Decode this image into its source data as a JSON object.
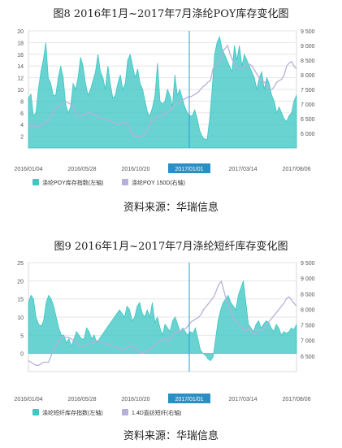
{
  "figures": [
    {
      "title": "图8   2016年1月~2017年7月涤纶POY库存变化图",
      "source": "资料来源：华瑞信息",
      "chart_data": {
        "type": "area",
        "x_tick_labels": [
          "2016/01/04",
          "2016/05/28",
          "2016/10/20",
          "2017/01/01",
          "2017/03/14",
          "2017/08/06"
        ],
        "highlight_label": "2017/01/01",
        "left_axis": {
          "ticks": [
            2,
            4,
            6,
            8,
            10,
            12,
            14,
            16,
            18,
            20
          ],
          "ylim": [
            0,
            20
          ]
        },
        "right_axis": {
          "ticks": [
            "6 000",
            "6 500",
            "7 000",
            "7 500",
            "8 000",
            "8 500",
            "9 000",
            "9 500"
          ],
          "ylim": [
            5500,
            9500
          ]
        },
        "series": [
          {
            "name": "涤纶POY库存指数(左轴)",
            "axis": "left",
            "color": "#3ec7c3",
            "values": [
              8.5,
              9.2,
              5.5,
              6,
              10,
              13,
              15,
              18,
              12,
              11,
              9,
              9,
              12,
              14,
              12,
              7.5,
              6,
              7,
              11,
              10,
              12,
              15.5,
              14,
              11,
              9,
              10,
              11.5,
              13,
              16,
              13,
              12,
              10,
              14,
              11,
              8.5,
              9,
              11,
              12.5,
              10,
              11,
              15,
              16,
              14,
              12,
              13.5,
              11,
              10,
              8,
              6,
              5.5,
              7,
              9,
              14.5,
              8,
              7.5,
              8,
              10,
              9,
              7,
              12.5,
              9,
              10,
              8.5,
              7,
              6,
              5.5,
              5.5,
              6.5,
              5,
              3,
              2,
              1.5,
              1.5,
              5,
              10,
              16,
              18,
              19,
              17,
              16,
              15,
              14,
              13,
              17.5,
              15,
              17.5,
              14,
              16,
              15,
              14,
              13,
              12,
              10,
              12,
              13,
              10,
              12,
              11,
              9,
              8,
              6,
              7,
              6,
              5,
              4.5,
              5.5,
              6,
              8,
              9
            ]
          },
          {
            "name": "涤纶POY 150D(右轴)",
            "axis": "right",
            "color": "#b7b0dc",
            "values": [
              6250,
              6250,
              6250,
              6250,
              6250,
              6280,
              6320,
              6350,
              6450,
              6600,
              6700,
              6850,
              6900,
              7000,
              7050,
              7050,
              7050,
              7000,
              6950,
              6700,
              6600,
              6600,
              6650,
              6650,
              6700,
              6700,
              6650,
              6650,
              6600,
              6500,
              6500,
              6500,
              6450,
              6450,
              6400,
              6350,
              6300,
              6300,
              6350,
              6400,
              6350,
              6200,
              6000,
              5900,
              5900,
              5900,
              5900,
              5950,
              6050,
              6250,
              6450,
              6450,
              6550,
              6600,
              6600,
              6650,
              6700,
              6750,
              6850,
              6950,
              7000,
              7050,
              7100,
              7150,
              7200,
              7250,
              7250,
              7300,
              7350,
              7400,
              7500,
              7600,
              7650,
              7750,
              7800,
              8200,
              8300,
              8400,
              8500,
              8800,
              8900,
              9000,
              8700,
              8500,
              8300,
              8250,
              8200,
              8250,
              8300,
              8400,
              8350,
              8300,
              8150,
              8000,
              7900,
              7800,
              7750,
              7600,
              7500,
              7500,
              7600,
              7750,
              7800,
              7850,
              8000,
              8300,
              8400,
              8450,
              8300,
              8200
            ]
          }
        ]
      }
    },
    {
      "title": "图9   2016年1月~2017年7月涤纶短纤库存变化图",
      "source": "资料来源：华瑞信息",
      "chart_data": {
        "type": "area",
        "x_tick_labels": [
          "2016/01/04",
          "2016/05/28",
          "2016/10/20",
          "2017/01/01",
          "2017/03/14",
          "2017/08/06"
        ],
        "highlight_label": "2017/01/01",
        "left_axis": {
          "ticks": [
            0,
            5,
            10,
            15,
            20,
            25
          ],
          "ylim": [
            -5,
            25
          ]
        },
        "right_axis": {
          "ticks": [
            "6 500",
            "7 000",
            "7 500",
            "8 000",
            "8 500",
            "9 000",
            "9 500"
          ],
          "ylim": [
            6000,
            9500
          ]
        },
        "series": [
          {
            "name": "涤纶短纤库存指数(左轴)",
            "axis": "left",
            "color": "#3ec7c3",
            "values": [
              14,
              16,
              15,
              10,
              8,
              7.5,
              9,
              14,
              16,
              15,
              13,
              10,
              7,
              5,
              5,
              3,
              4,
              2,
              4,
              6,
              5,
              4,
              4,
              7,
              6,
              4,
              5,
              3,
              4,
              5,
              6,
              7,
              8,
              9,
              10,
              11,
              12,
              11,
              10,
              13,
              12,
              9,
              10,
              13,
              14,
              11,
              10,
              12,
              10,
              14,
              8.5,
              10,
              7,
              5,
              8,
              7,
              6,
              9,
              10,
              8,
              6,
              7,
              6,
              5,
              6,
              5.5,
              7,
              4,
              1,
              0,
              -0.5,
              -1.5,
              -2,
              -1,
              4,
              9,
              12,
              14,
              15,
              16,
              14,
              13,
              12,
              16,
              18,
              20,
              14,
              8,
              7,
              6,
              8,
              9,
              7,
              8,
              9,
              8.5,
              7,
              6,
              8,
              7,
              5,
              6,
              5.5,
              6,
              7,
              6.5,
              8
            ]
          },
          {
            "name": "1.4D直纺短纤(右轴)",
            "axis": "right",
            "color": "#b7b0dc",
            "values": [
              6350,
              6300,
              6250,
              6200,
              6200,
              6250,
              6300,
              6300,
              6300,
              6500,
              6700,
              6800,
              7000,
              7050,
              7100,
              7100,
              7100,
              7050,
              7000,
              6950,
              6850,
              6800,
              6800,
              6850,
              6900,
              6900,
              6950,
              7000,
              6950,
              6950,
              6900,
              6900,
              6850,
              6850,
              6800,
              6800,
              6750,
              6700,
              6700,
              6750,
              6800,
              6850,
              6800,
              6700,
              6650,
              6600,
              6600,
              6650,
              6700,
              6750,
              6800,
              6900,
              6950,
              7000,
              7050,
              7050,
              7000,
              7100,
              7200,
              7250,
              7300,
              7300,
              7350,
              7400,
              7500,
              7600,
              7650,
              7700,
              7750,
              7850,
              8000,
              8100,
              8200,
              8300,
              8400,
              8600,
              8800,
              8900,
              8600,
              8300,
              8100,
              7900,
              7700,
              7600,
              7500,
              7400,
              7350,
              7300,
              7400,
              7300,
              7200,
              7250,
              7300,
              7350,
              7400,
              7500,
              7600,
              7700,
              7800,
              7900,
              8000,
              8100,
              8200,
              8350,
              8400,
              8300,
              8200,
              8100
            ]
          }
        ]
      }
    }
  ]
}
